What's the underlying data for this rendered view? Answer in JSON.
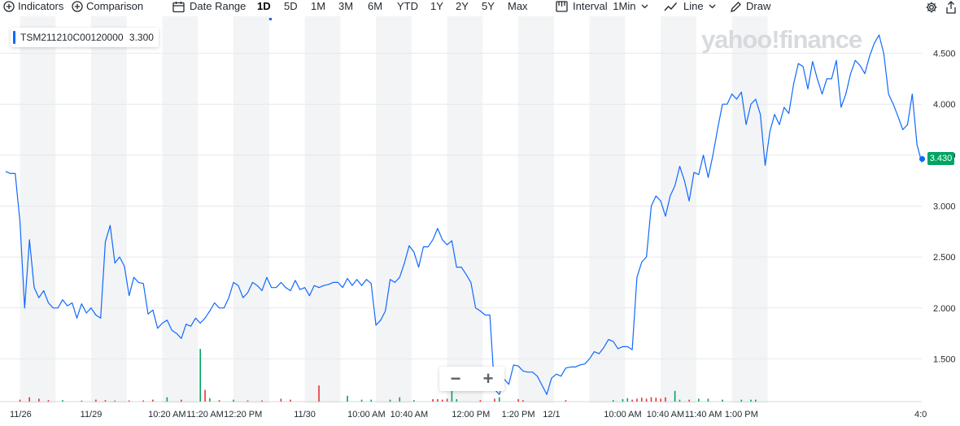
{
  "toolbar": {
    "indicators": "Indicators",
    "comparison": "Comparison",
    "date_range": "Date Range",
    "ranges": [
      "1D",
      "5D",
      "1M",
      "3M",
      "6M",
      "YTD",
      "1Y",
      "2Y",
      "5Y",
      "Max"
    ],
    "active_range": "1D",
    "interval_label": "Interval",
    "interval_value": "1Min",
    "chart_type": "Line",
    "draw": "Draw"
  },
  "legend": {
    "symbol": "TSM211210C00120000",
    "value": "3.300"
  },
  "watermark": "yahoo!finance",
  "current_price": "3.430",
  "zoom": {
    "out": "−",
    "in": "+"
  },
  "colors": {
    "line": "#0f69ff",
    "up": "#00a562",
    "down": "#eb3333",
    "band": "#f3f4f5",
    "price_tag": "#00a562"
  },
  "chart_data": {
    "type": "line",
    "title": "",
    "xlabel": "",
    "ylabel": "",
    "ylim": [
      1.08,
      4.8
    ],
    "y_ticks": [
      "4.500",
      "4.000",
      "3.500",
      "3.000",
      "2.500",
      "2.000",
      "1.500"
    ],
    "y_tick_values": [
      4.5,
      4.0,
      3.5,
      3.0,
      2.5,
      2.0,
      1.5
    ],
    "x_ticks": [
      "11/26",
      "11/29",
      "10:20 AM",
      "11:20 AM",
      "12:20 PM",
      "11/30",
      "10:00 AM",
      "10:40 AM",
      "12:00 PM",
      "1:20 PM",
      "12/1",
      "10:00 AM",
      "10:40 AM",
      "11:40 AM",
      "1:00 PM",
      "4:0"
    ],
    "x_tick_index": [
      3,
      18,
      34,
      42,
      50,
      63,
      76,
      85,
      98,
      108,
      115,
      130,
      139,
      147,
      155,
      164
    ],
    "series": [
      {
        "values": [
          3.34,
          3.32,
          3.32,
          2.85,
          2.0,
          2.67,
          2.2,
          2.1,
          2.17,
          2.05,
          2.0,
          2.0,
          2.08,
          2.02,
          2.05,
          1.9,
          2.04,
          1.95,
          2.0,
          1.93,
          1.9,
          2.65,
          2.81,
          2.44,
          2.5,
          2.41,
          2.12,
          2.3,
          2.25,
          2.24,
          1.94,
          1.98,
          1.8,
          1.85,
          1.88,
          1.78,
          1.75,
          1.7,
          1.84,
          1.82,
          1.9,
          1.85,
          1.9,
          1.97,
          2.05,
          2.0,
          2.0,
          2.1,
          2.25,
          2.22,
          2.1,
          2.15,
          2.25,
          2.22,
          2.17,
          2.3,
          2.2,
          2.2,
          2.25,
          2.2,
          2.17,
          2.27,
          2.18,
          2.2,
          2.12,
          2.22,
          2.2,
          2.22,
          2.23,
          2.25,
          2.25,
          2.2,
          2.29,
          2.22,
          2.28,
          2.22,
          2.28,
          2.24,
          1.83,
          1.88,
          1.97,
          2.28,
          2.25,
          2.3,
          2.44,
          2.61,
          2.55,
          2.4,
          2.6,
          2.6,
          2.67,
          2.78,
          2.67,
          2.62,
          2.66,
          2.4,
          2.4,
          2.33,
          2.25,
          2.0,
          1.97,
          1.93,
          1.93,
          1.2,
          1.15,
          1.3,
          1.25,
          1.44,
          1.43,
          1.38,
          1.37,
          1.37,
          1.33,
          1.24,
          1.15,
          1.31,
          1.35,
          1.33,
          1.41,
          1.42,
          1.42,
          1.44,
          1.45,
          1.5,
          1.57,
          1.55,
          1.61,
          1.69,
          1.67,
          1.6,
          1.62,
          1.62,
          1.59,
          2.3,
          2.45,
          2.5,
          3.0,
          3.1,
          3.05,
          2.9,
          3.1,
          3.2,
          3.39,
          3.25,
          3.05,
          3.33,
          3.31,
          3.5,
          3.28,
          3.5,
          3.76,
          4.0,
          4.0,
          4.1,
          4.05,
          4.12,
          3.8,
          4.0,
          4.05,
          3.9,
          3.4,
          3.73,
          3.9,
          3.8,
          3.97,
          3.91,
          4.2,
          4.4,
          4.37,
          4.15,
          4.42,
          4.25,
          4.1,
          4.25,
          4.25,
          4.43,
          3.97,
          4.1,
          4.3,
          4.43,
          4.38,
          4.3,
          4.47,
          4.6,
          4.68,
          4.5,
          4.1,
          4.0,
          3.88,
          3.75,
          3.8,
          4.1,
          3.6,
          3.43
        ]
      }
    ],
    "volume": [
      {
        "i": 3,
        "v": 0.2,
        "dir": "down"
      },
      {
        "i": 5,
        "v": 0.45,
        "dir": "down"
      },
      {
        "i": 7,
        "v": 0.3,
        "dir": "down"
      },
      {
        "i": 9,
        "v": 0.15,
        "dir": "down"
      },
      {
        "i": 12,
        "v": 0.15,
        "dir": "up"
      },
      {
        "i": 16,
        "v": 0.1,
        "dir": "down"
      },
      {
        "i": 19,
        "v": 0.2,
        "dir": "down"
      },
      {
        "i": 21,
        "v": 0.15,
        "dir": "down"
      },
      {
        "i": 23,
        "v": 0.1,
        "dir": "down"
      },
      {
        "i": 26,
        "v": 0.12,
        "dir": "down"
      },
      {
        "i": 29,
        "v": 0.12,
        "dir": "down"
      },
      {
        "i": 31,
        "v": 0.2,
        "dir": "down"
      },
      {
        "i": 34,
        "v": 0.45,
        "dir": "up"
      },
      {
        "i": 37,
        "v": 0.2,
        "dir": "down"
      },
      {
        "i": 41,
        "v": 5.4,
        "dir": "up"
      },
      {
        "i": 42,
        "v": 1.2,
        "dir": "down"
      },
      {
        "i": 43,
        "v": 0.35,
        "dir": "up"
      },
      {
        "i": 45,
        "v": 0.15,
        "dir": "down"
      },
      {
        "i": 48,
        "v": 0.2,
        "dir": "up"
      },
      {
        "i": 51,
        "v": 0.12,
        "dir": "down"
      },
      {
        "i": 54,
        "v": 0.12,
        "dir": "down"
      },
      {
        "i": 58,
        "v": 0.3,
        "dir": "down"
      },
      {
        "i": 60,
        "v": 0.2,
        "dir": "down"
      },
      {
        "i": 66,
        "v": 1.65,
        "dir": "down"
      },
      {
        "i": 72,
        "v": 0.6,
        "dir": "up"
      },
      {
        "i": 75,
        "v": 0.2,
        "dir": "up"
      },
      {
        "i": 77,
        "v": 0.2,
        "dir": "up"
      },
      {
        "i": 81,
        "v": 0.2,
        "dir": "up"
      },
      {
        "i": 83,
        "v": 0.45,
        "dir": "up"
      },
      {
        "i": 86,
        "v": 0.15,
        "dir": "up"
      },
      {
        "i": 90,
        "v": 0.25,
        "dir": "down"
      },
      {
        "i": 91,
        "v": 0.25,
        "dir": "down"
      },
      {
        "i": 92,
        "v": 0.2,
        "dir": "down"
      },
      {
        "i": 93,
        "v": 0.3,
        "dir": "down"
      },
      {
        "i": 94,
        "v": 3.3,
        "dir": "up"
      },
      {
        "i": 95,
        "v": 0.25,
        "dir": "up"
      },
      {
        "i": 100,
        "v": 0.15,
        "dir": "down"
      },
      {
        "i": 103,
        "v": 0.3,
        "dir": "down"
      },
      {
        "i": 104,
        "v": 0.45,
        "dir": "up"
      },
      {
        "i": 108,
        "v": 0.25,
        "dir": "down"
      },
      {
        "i": 109,
        "v": 0.15,
        "dir": "down"
      },
      {
        "i": 118,
        "v": 0.15,
        "dir": "down"
      },
      {
        "i": 128,
        "v": 0.15,
        "dir": "up"
      },
      {
        "i": 130,
        "v": 0.25,
        "dir": "up"
      },
      {
        "i": 131,
        "v": 0.35,
        "dir": "up"
      },
      {
        "i": 132,
        "v": 0.2,
        "dir": "down"
      },
      {
        "i": 133,
        "v": 0.3,
        "dir": "down"
      },
      {
        "i": 134,
        "v": 0.4,
        "dir": "down"
      },
      {
        "i": 135,
        "v": 0.3,
        "dir": "down"
      },
      {
        "i": 136,
        "v": 0.45,
        "dir": "down"
      },
      {
        "i": 137,
        "v": 0.4,
        "dir": "down"
      },
      {
        "i": 138,
        "v": 0.3,
        "dir": "down"
      },
      {
        "i": 139,
        "v": 0.45,
        "dir": "down"
      },
      {
        "i": 141,
        "v": 1.1,
        "dir": "up"
      },
      {
        "i": 142,
        "v": 0.2,
        "dir": "up"
      },
      {
        "i": 144,
        "v": 0.2,
        "dir": "down"
      },
      {
        "i": 146,
        "v": 0.3,
        "dir": "up"
      },
      {
        "i": 148,
        "v": 0.3,
        "dir": "up"
      },
      {
        "i": 151,
        "v": 0.2,
        "dir": "up"
      },
      {
        "i": 155,
        "v": 0.2,
        "dir": "up"
      },
      {
        "i": 157,
        "v": 0.2,
        "dir": "up"
      },
      {
        "i": 158,
        "v": 0.2,
        "dir": "up"
      }
    ],
    "grid": true,
    "legend_position": "top-left"
  }
}
